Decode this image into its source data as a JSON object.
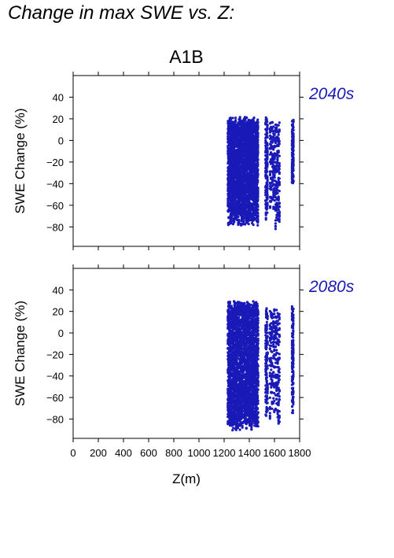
{
  "page_title": "Change in max SWE vs. Z:",
  "colors": {
    "points": "#1a1ab8",
    "period_label": "#1a1ab8",
    "axes": "#000000"
  },
  "chart_data": {
    "type": "scatter",
    "title": "A1B",
    "xlabel": "Z(m)",
    "ylabel": "SWE Change (%)",
    "xlim": [
      0,
      1800
    ],
    "ylim": [
      -98,
      60
    ],
    "xticks": [
      0,
      200,
      400,
      600,
      800,
      1000,
      1200,
      1400,
      1600,
      1800
    ],
    "yticks": [
      40,
      20,
      0,
      -20,
      -40,
      -60,
      -80
    ],
    "grid": false,
    "panels": [
      {
        "label": "2040s",
        "series": [
          {
            "description": "dense vertical clusters of points; elevation band with value range",
            "bands": [
              {
                "x": [
                  1230,
                  1470
                ],
                "y": [
                  -80,
                  22
                ]
              },
              {
                "x": [
                  1530,
                  1545
                ],
                "y": [
                  -82,
                  24
                ]
              },
              {
                "x": [
                  1565,
                  1600
                ],
                "y": [
                  -75,
                  20
                ]
              },
              {
                "x": [
                  1610,
                  1640
                ],
                "y": [
                  -85,
                  20
                ]
              },
              {
                "x": [
                  1740,
                  1750
                ],
                "y": [
                  -55,
                  22
                ]
              }
            ]
          }
        ]
      },
      {
        "label": "2080s",
        "series": [
          {
            "description": "dense vertical clusters of points; elevation band with value range",
            "bands": [
              {
                "x": [
                  1230,
                  1470
                ],
                "y": [
                  -92,
                  30
                ]
              },
              {
                "x": [
                  1530,
                  1545
                ],
                "y": [
                  -88,
                  26
                ]
              },
              {
                "x": [
                  1565,
                  1600
                ],
                "y": [
                  -85,
                  25
                ]
              },
              {
                "x": [
                  1610,
                  1640
                ],
                "y": [
                  -86,
                  24
                ]
              },
              {
                "x": [
                  1740,
                  1750
                ],
                "y": [
                  -78,
                  25
                ]
              }
            ]
          }
        ]
      }
    ]
  }
}
